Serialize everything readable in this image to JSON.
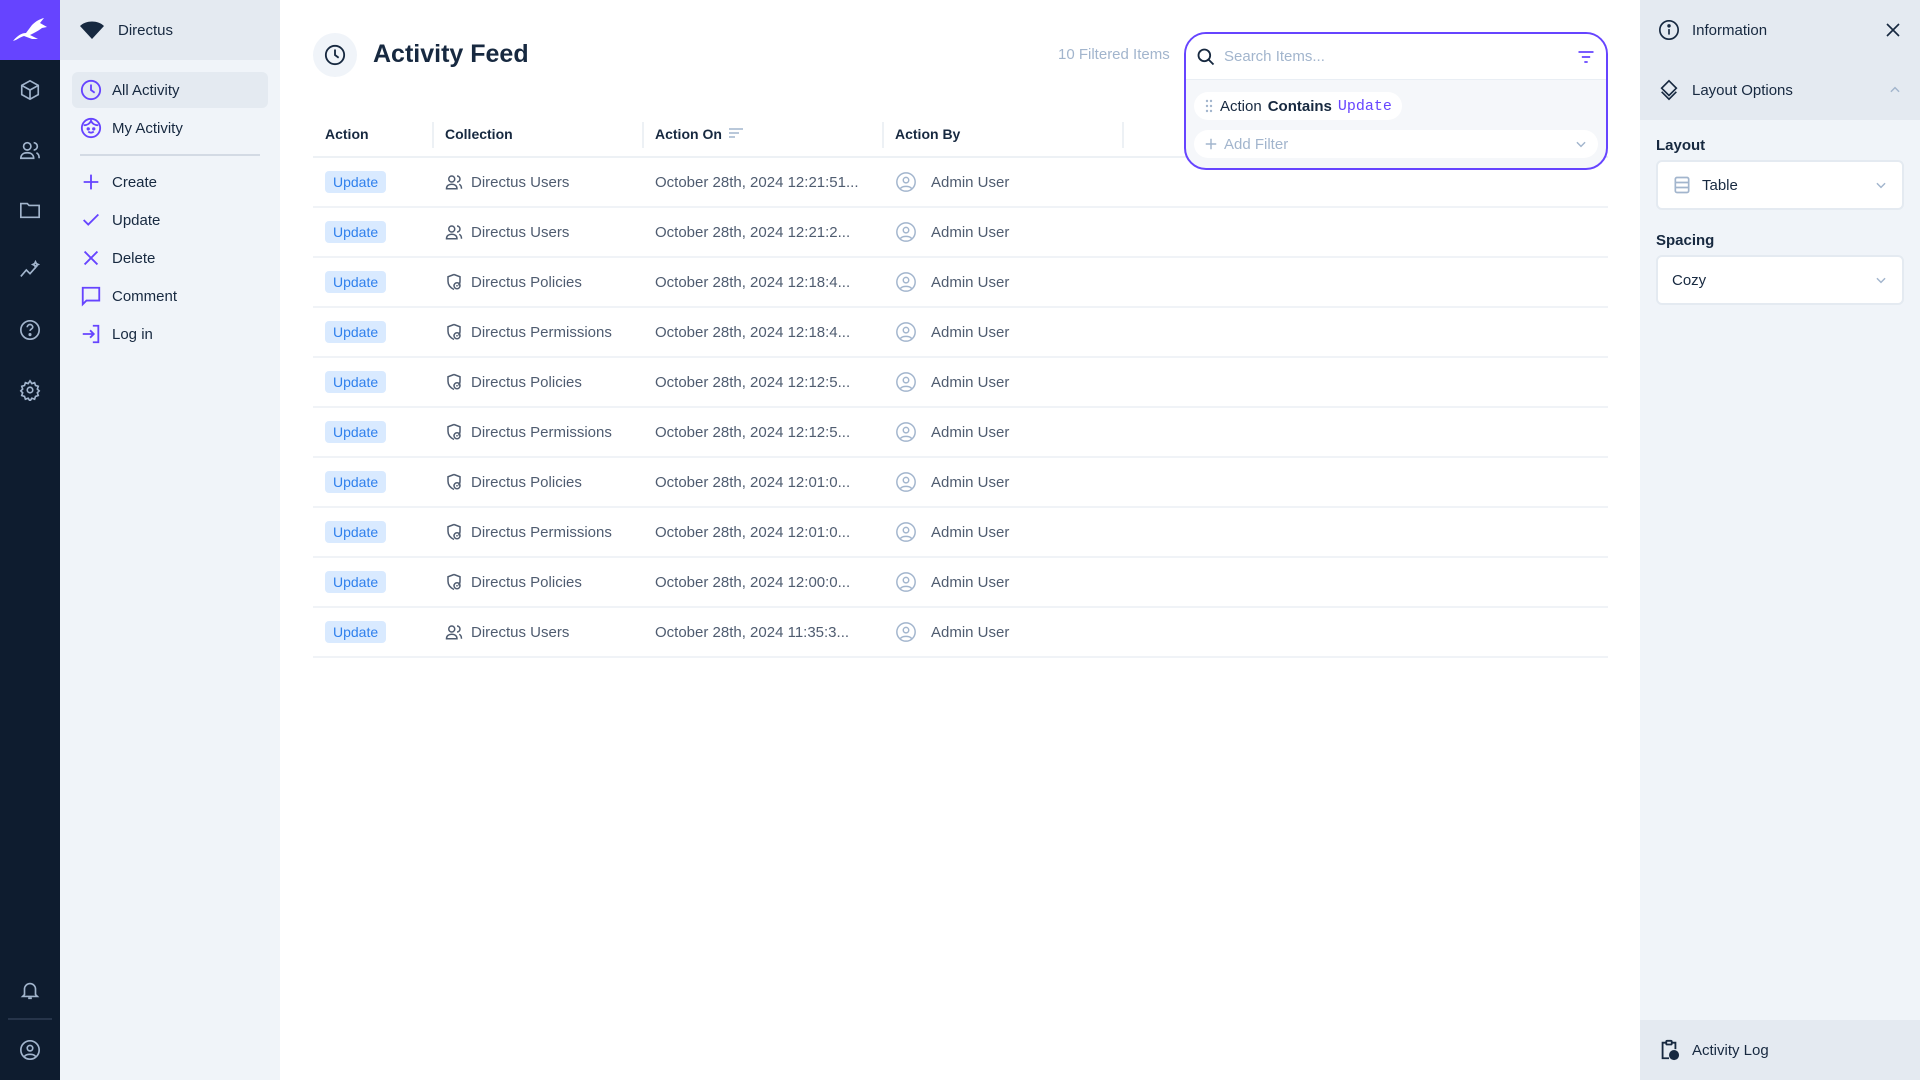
{
  "colors": {
    "accent": "#6644ff",
    "rail": "#0e1c2f",
    "badge_bg": "#d9eaff",
    "badge_text": "#2f80ed"
  },
  "rail": {
    "icons": [
      "directus-logo-icon",
      "content-icon",
      "users-icon",
      "files-icon",
      "insights-icon",
      "help-icon",
      "settings-icon",
      "notifications-icon",
      "user-avatar-icon"
    ]
  },
  "nav": {
    "project": "Directus",
    "items": [
      {
        "label": "All Activity",
        "icon": "clock-icon",
        "active": true
      },
      {
        "label": "My Activity",
        "icon": "face-icon"
      },
      {
        "label": "Create",
        "icon": "plus-icon"
      },
      {
        "label": "Update",
        "icon": "check-icon"
      },
      {
        "label": "Delete",
        "icon": "x-icon"
      },
      {
        "label": "Comment",
        "icon": "comment-icon"
      },
      {
        "label": "Log in",
        "icon": "login-icon"
      }
    ]
  },
  "header": {
    "title": "Activity Feed",
    "count": "10 Filtered Items"
  },
  "search": {
    "placeholder": "Search Items...",
    "filter": {
      "field": "Action",
      "operator": "Contains",
      "value": "Update"
    },
    "add_filter": "Add Filter"
  },
  "table": {
    "columns": [
      "Action",
      "Collection",
      "Action On",
      "Action By"
    ],
    "rows": [
      {
        "action": "Update",
        "collection": "Directus Users",
        "icon": "users",
        "on": "October 28th, 2024 12:21:51...",
        "by": "Admin User"
      },
      {
        "action": "Update",
        "collection": "Directus Users",
        "icon": "users",
        "on": "October 28th, 2024 12:21:2...",
        "by": "Admin User"
      },
      {
        "action": "Update",
        "collection": "Directus Policies",
        "icon": "policy",
        "on": "October 28th, 2024 12:18:4...",
        "by": "Admin User"
      },
      {
        "action": "Update",
        "collection": "Directus Permissions",
        "icon": "policy",
        "on": "October 28th, 2024 12:18:4...",
        "by": "Admin User"
      },
      {
        "action": "Update",
        "collection": "Directus Policies",
        "icon": "policy",
        "on": "October 28th, 2024 12:12:5...",
        "by": "Admin User"
      },
      {
        "action": "Update",
        "collection": "Directus Permissions",
        "icon": "policy",
        "on": "October 28th, 2024 12:12:5...",
        "by": "Admin User"
      },
      {
        "action": "Update",
        "collection": "Directus Policies",
        "icon": "policy",
        "on": "October 28th, 2024 12:01:0...",
        "by": "Admin User"
      },
      {
        "action": "Update",
        "collection": "Directus Permissions",
        "icon": "policy",
        "on": "October 28th, 2024 12:01:0...",
        "by": "Admin User"
      },
      {
        "action": "Update",
        "collection": "Directus Policies",
        "icon": "policy",
        "on": "October 28th, 2024 12:00:0...",
        "by": "Admin User"
      },
      {
        "action": "Update",
        "collection": "Directus Users",
        "icon": "users",
        "on": "October 28th, 2024 11:35:3...",
        "by": "Admin User"
      }
    ]
  },
  "sidebar": {
    "information": "Information",
    "layout_options": "Layout Options",
    "layout_label": "Layout",
    "layout_value": "Table",
    "spacing_label": "Spacing",
    "spacing_value": "Cozy",
    "activity_log": "Activity Log"
  }
}
